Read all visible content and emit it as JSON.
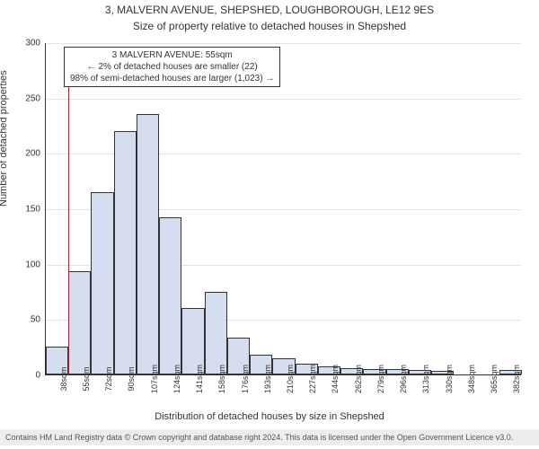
{
  "title_line1": "3, MALVERN AVENUE, SHEPSHED, LOUGHBOROUGH, LE12 9ES",
  "title_line2": "Size of property relative to detached houses in Shepshed",
  "title_fontsize_1": 12,
  "title_fontsize_2": 12,
  "y_axis_title": "Number of detached properties",
  "x_axis_title": "Distribution of detached houses by size in Shepshed",
  "footer_text": "Contains HM Land Registry data © Crown copyright and database right 2024. This data is licensed under the Open Government Licence v3.0.",
  "chart": {
    "type": "histogram",
    "ylim": [
      0,
      300
    ],
    "ytick_step": 50,
    "x_categories": [
      "38sqm",
      "55sqm",
      "72sqm",
      "90sqm",
      "107sqm",
      "124sqm",
      "141sqm",
      "158sqm",
      "176sqm",
      "193sqm",
      "210sqm",
      "227sqm",
      "244sqm",
      "262sqm",
      "279sqm",
      "296sqm",
      "313sqm",
      "330sqm",
      "348sqm",
      "365sqm",
      "382sqm"
    ],
    "values": [
      25,
      93,
      165,
      220,
      235,
      142,
      60,
      75,
      33,
      18,
      15,
      10,
      7,
      6,
      5,
      5,
      4,
      3,
      0,
      0,
      4
    ],
    "bar_fill": "#d4deef",
    "bar_border": "#333333",
    "background_color": "#ffffff",
    "grid_color": "#e2e2e2",
    "axis_color": "#333333",
    "ref_line_color": "#ff0000",
    "ref_line_position_index": 1,
    "ref_line_height_value": 283,
    "annotation": {
      "line1": "3 MALVERN AVENUE: 55sqm",
      "line2": "← 2% of detached houses are smaller (22)",
      "line3": "98% of semi-detached houses are larger (1,023) →"
    }
  }
}
